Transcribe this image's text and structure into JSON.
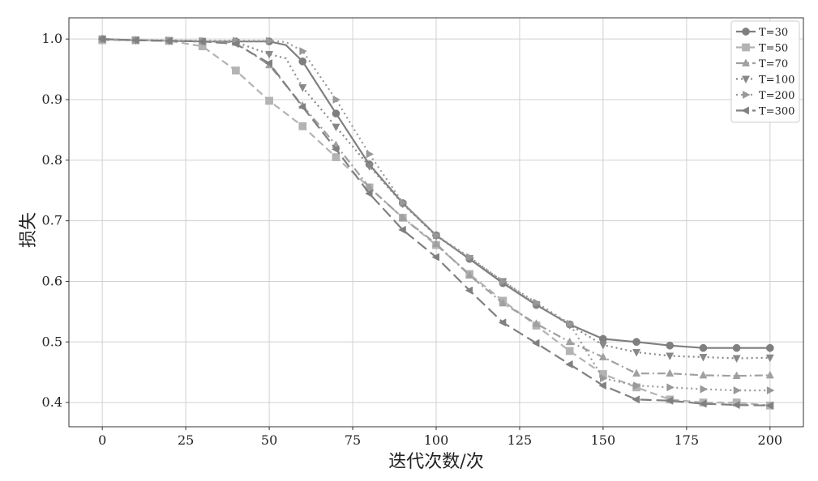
{
  "chart_data": {
    "type": "line",
    "xlabel": "迭代次数/次",
    "ylabel": "损失",
    "xlim": [
      -10,
      210
    ],
    "ylim": [
      0.36,
      1.035
    ],
    "xticks": [
      0,
      25,
      50,
      75,
      100,
      125,
      150,
      175,
      200
    ],
    "yticks": [
      0.4,
      0.5,
      0.6,
      0.7,
      0.8,
      0.9,
      1.0
    ],
    "xtick_labels": [
      "0",
      "25",
      "50",
      "75",
      "100",
      "125",
      "150",
      "175",
      "200"
    ],
    "ytick_labels": [
      "0.4",
      "0.5",
      "0.6",
      "0.7",
      "0.8",
      "0.9",
      "1.0"
    ],
    "grid": true,
    "legend_position": "top-right",
    "series": [
      {
        "name": "T=30",
        "color": "#7f7f7f",
        "dash": "",
        "marker": "circle",
        "x": [
          0,
          10,
          20,
          30,
          40,
          50,
          55,
          60,
          70,
          80,
          90,
          100,
          110,
          120,
          130,
          140,
          150,
          160,
          170,
          180,
          190,
          200
        ],
        "y": [
          1.0,
          0.998,
          0.997,
          0.996,
          0.996,
          0.996,
          0.99,
          0.963,
          0.877,
          0.793,
          0.729,
          0.676,
          0.637,
          0.597,
          0.561,
          0.529,
          0.505,
          0.5,
          0.494,
          0.49,
          0.49,
          0.49
        ]
      },
      {
        "name": "T=50",
        "color": "#b3b3b3",
        "dash": "9,5",
        "marker": "square",
        "x": [
          0,
          10,
          20,
          30,
          40,
          50,
          60,
          70,
          80,
          90,
          100,
          110,
          120,
          130,
          140,
          150,
          160,
          170,
          180,
          190,
          200
        ],
        "y": [
          0.998,
          0.998,
          0.997,
          0.988,
          0.948,
          0.898,
          0.856,
          0.805,
          0.755,
          0.705,
          0.66,
          0.612,
          0.568,
          0.527,
          0.485,
          0.447,
          0.425,
          0.405,
          0.4,
          0.4,
          0.395
        ]
      },
      {
        "name": "T=70",
        "color": "#a0a0a0",
        "dash": "10,4,2,4",
        "marker": "triangle-up",
        "x": [
          0,
          10,
          20,
          30,
          40,
          50,
          60,
          70,
          80,
          90,
          100,
          110,
          120,
          130,
          140,
          150,
          160,
          170,
          180,
          190,
          200
        ],
        "y": [
          1.0,
          0.998,
          0.997,
          0.996,
          0.994,
          0.957,
          0.89,
          0.825,
          0.755,
          0.705,
          0.662,
          0.61,
          0.564,
          0.53,
          0.5,
          0.475,
          0.448,
          0.448,
          0.445,
          0.444,
          0.445
        ]
      },
      {
        "name": "T=100",
        "color": "#888888",
        "dash": "2,4",
        "marker": "triangle-down",
        "x": [
          0,
          10,
          20,
          30,
          40,
          50,
          55,
          60,
          70,
          80,
          90,
          100,
          110,
          120,
          130,
          140,
          150,
          160,
          170,
          180,
          190,
          200
        ],
        "y": [
          1.0,
          0.998,
          0.997,
          0.996,
          0.995,
          0.975,
          0.968,
          0.92,
          0.855,
          0.79,
          0.728,
          0.675,
          0.638,
          0.6,
          0.562,
          0.528,
          0.495,
          0.483,
          0.477,
          0.475,
          0.473,
          0.474
        ]
      },
      {
        "name": "T=200",
        "color": "#999999",
        "dash": "2,4",
        "marker": "triangle-right",
        "x": [
          0,
          10,
          20,
          30,
          40,
          50,
          55,
          60,
          70,
          80,
          90,
          100,
          110,
          120,
          130,
          140,
          150,
          160,
          170,
          180,
          190,
          200
        ],
        "y": [
          1.0,
          0.998,
          0.998,
          0.997,
          0.997,
          0.997,
          0.995,
          0.98,
          0.9,
          0.81,
          0.73,
          0.676,
          0.64,
          0.6,
          0.565,
          0.53,
          0.44,
          0.428,
          0.425,
          0.422,
          0.42,
          0.42
        ]
      },
      {
        "name": "T=300",
        "color": "#808080",
        "dash": "14,6",
        "marker": "triangle-left",
        "x": [
          0,
          10,
          20,
          30,
          40,
          50,
          60,
          70,
          80,
          90,
          100,
          110,
          120,
          130,
          140,
          150,
          160,
          170,
          180,
          190,
          200
        ],
        "y": [
          1.0,
          0.998,
          0.997,
          0.996,
          0.992,
          0.96,
          0.888,
          0.818,
          0.745,
          0.685,
          0.64,
          0.585,
          0.532,
          0.498,
          0.463,
          0.428,
          0.405,
          0.403,
          0.398,
          0.396,
          0.395
        ]
      }
    ]
  }
}
